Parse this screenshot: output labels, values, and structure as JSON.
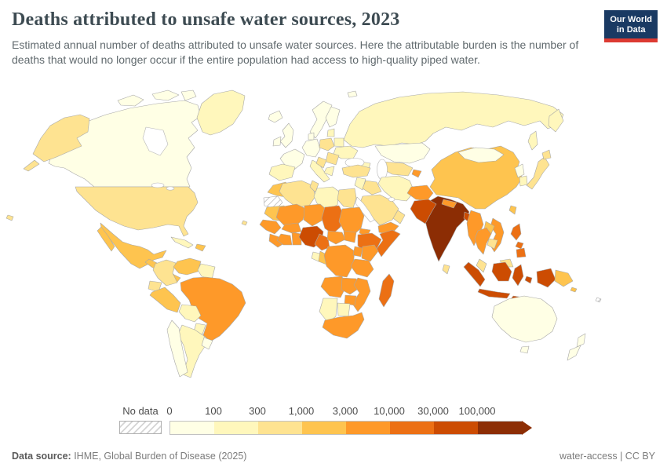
{
  "header": {
    "title": "Deaths attributed to unsafe water sources, 2023",
    "subtitle": "Estimated annual number of deaths attributed to unsafe water sources. Here the attributable burden is the number of deaths that would no longer occur if the entire population had access to high-quality piped water.",
    "logo": {
      "line1": "Our World",
      "line2": "in Data",
      "bg_color": "#1a3a63",
      "accent_color": "#dc3a32"
    }
  },
  "legend": {
    "no_data_label": "No data",
    "tick_labels": [
      "0",
      "100",
      "300",
      "1,000",
      "3,000",
      "10,000",
      "30,000",
      "100,000"
    ]
  },
  "footer": {
    "source_prefix": "Data source:",
    "source_text": " IHME, Global Burden of Disease (2025)",
    "license_text": "water-access | CC BY"
  },
  "chart_data": {
    "type": "heatmap",
    "subtype": "world-choropleth-map",
    "title": "Deaths attributed to unsafe water sources, 2023",
    "value_unit": "annual deaths attributed to unsafe water sources",
    "projection": "world map, Robinson-like",
    "legend_position": "bottom",
    "color_scale": {
      "scale_type": "log-binned",
      "bucket_edges": [
        "0",
        "100",
        "300",
        "1,000",
        "3,000",
        "10,000",
        "30,000",
        "100,000"
      ],
      "palette": [
        "#FFFFE5",
        "#FFF7BC",
        "#FEE391",
        "#FEC44F",
        "#FE9929",
        "#EC7014",
        "#CC4C02",
        "#8C2D04"
      ],
      "no_data": "hatched-gray",
      "note": "bucket index i means a value between edge i and edge i+1; index 7 means more than 100,000"
    },
    "regions": {
      "canada": 0,
      "greenland": 1,
      "iceland": 0,
      "usa": 2,
      "mexico": 3,
      "central-america": 3,
      "cuba": 1,
      "hispaniola": 3,
      "colombia": 2,
      "venezuela": 3,
      "guyanas": 1,
      "ecuador": 2,
      "peru": 3,
      "brazil": 4,
      "bolivia": 1,
      "paraguay": 1,
      "chile": 0,
      "argentina": 1,
      "uruguay": 0,
      "united-kingdom": 0,
      "ireland": 0,
      "norway-sweden": 0,
      "finland": 0,
      "denmark": 0,
      "france": 0,
      "spain-portugal": 1,
      "germany-central-europe": 0,
      "italy": 1,
      "poland": 2,
      "baltics": 1,
      "belarus": 1,
      "ukraine": 1,
      "romania-bulgaria": 2,
      "balkans": 2,
      "greece": 1,
      "turkey": 2,
      "russia": 1,
      "kazakhstan": 0,
      "central-asia": 2,
      "tajikistan": 4,
      "caucasus": 1,
      "levant": 1,
      "iraq": 2,
      "iran": 1,
      "saudi-arabia": 2,
      "yemen": 4,
      "oman": 2,
      "afghanistan": 4,
      "pakistan": 6,
      "india": 7,
      "nepal": 4,
      "bangladesh": 6,
      "sri-lanka": 2,
      "myanmar": 4,
      "china": 3,
      "taiwan": 3,
      "mongolia": 0,
      "north-korea": 0,
      "south-korea": 1,
      "japan": 2,
      "thailand": 4,
      "laos": 3,
      "cambodia": 2,
      "vietnam": 4,
      "malaysia": 2,
      "indonesia": 6,
      "papua-new-guinea": 3,
      "philippines": 5,
      "solomon-islands": 3,
      "fiji": "nodata",
      "morocco": 3,
      "western-sahara": "nodata",
      "mauritania": 3,
      "algeria": 2,
      "tunisia": 2,
      "libya": 1,
      "egypt": 2,
      "mali": 4,
      "niger": 4,
      "chad": 5,
      "sudan": 4,
      "eritrea": 4,
      "ethiopia": 5,
      "somalia": 5,
      "senegal-guinea": 4,
      "sierra-leone-liberia": 4,
      "ivory-coast": 4,
      "ghana-togo-benin": 4,
      "burkina-faso": 4,
      "nigeria": 6,
      "cameroon": 5,
      "central-african-republic": 4,
      "south-sudan": 4,
      "gabon": 1,
      "congo": 3,
      "dr-congo": 4,
      "uganda": 4,
      "kenya": 4,
      "tanzania": 4,
      "angola": 4,
      "zambia": 4,
      "mozambique": 4,
      "zimbabwe": 4,
      "namibia": 1,
      "botswana": 1,
      "south-africa": 4,
      "madagascar": 5,
      "cape-verde": 2,
      "australia": 0,
      "new-zealand": 0
    }
  }
}
